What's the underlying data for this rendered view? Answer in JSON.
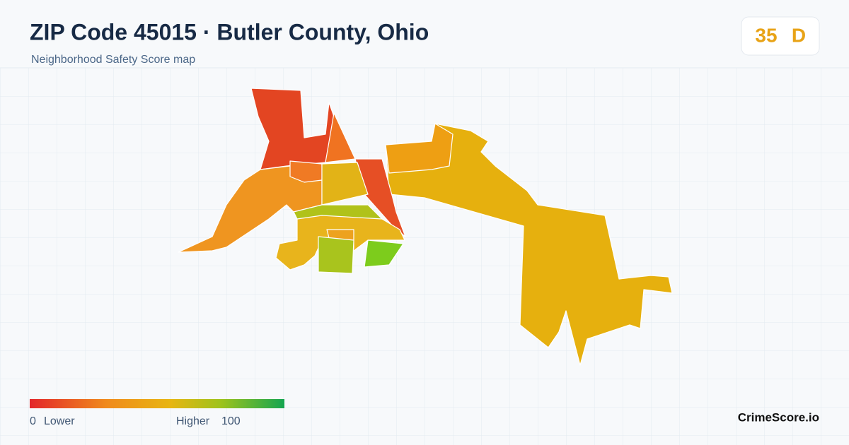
{
  "header": {
    "title": "ZIP Code 45015 · Butler County, Ohio",
    "subtitle": "Neighborhood Safety Score map"
  },
  "score": {
    "value": "35",
    "grade": "D"
  },
  "legend": {
    "min": "0",
    "min_label": "Lower",
    "max_label": "Higher",
    "max": "100"
  },
  "brand": "CrimeScore.io"
}
